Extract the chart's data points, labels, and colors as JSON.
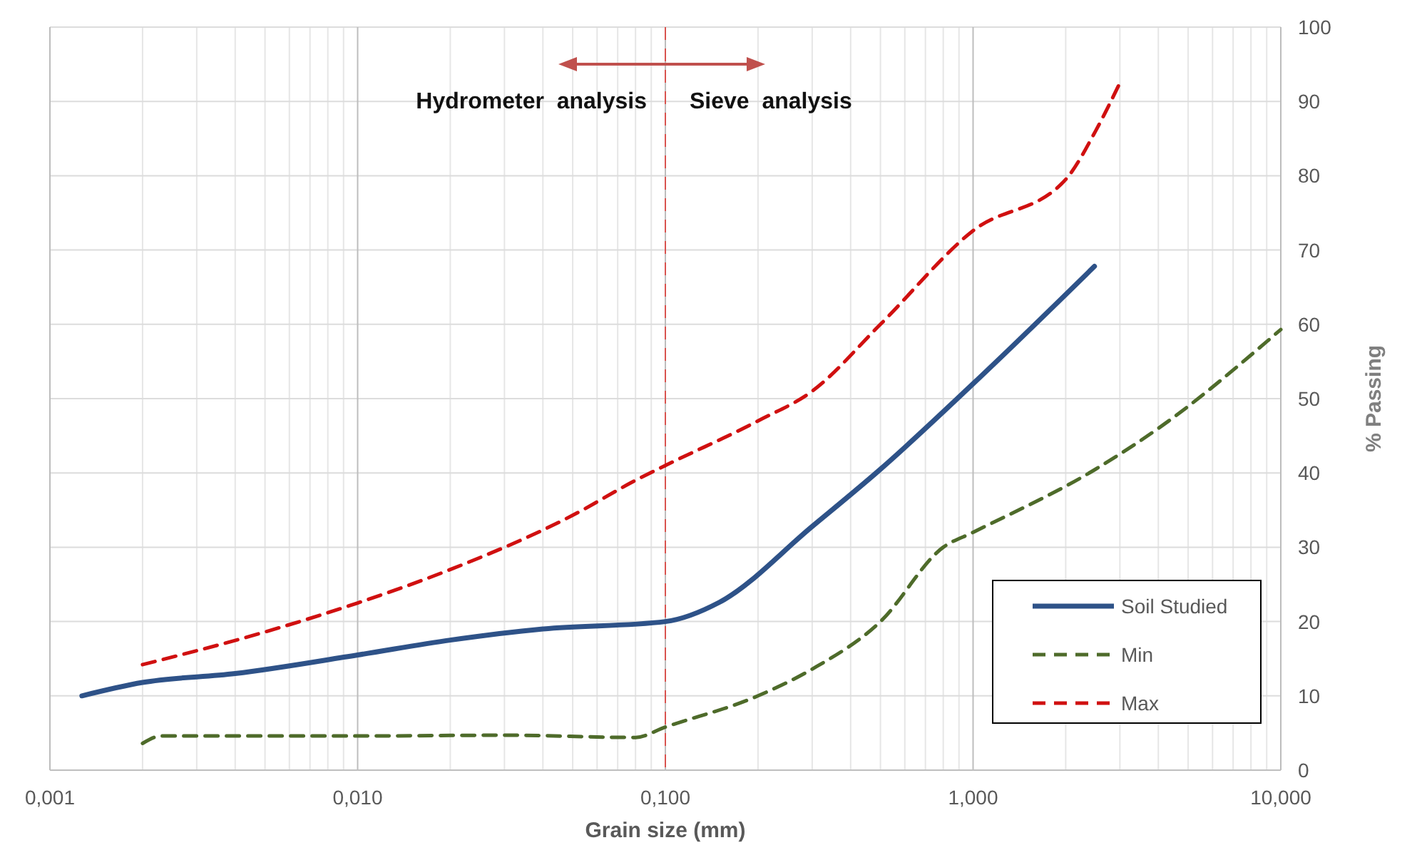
{
  "chart_data": {
    "type": "line",
    "xlabel": "Grain size (mm)",
    "ylabel": "% Passing",
    "log": "x",
    "grid": true,
    "legend": "bottom right",
    "xlim": [
      0.001,
      10
    ],
    "xticks": [
      {
        "value": 0.001,
        "label": "0,001"
      },
      {
        "value": 0.01,
        "label": "0,010"
      },
      {
        "value": 0.1,
        "label": "0,100"
      },
      {
        "value": 1,
        "label": "1,000"
      },
      {
        "value": 10,
        "label": "10,000"
      }
    ],
    "ylim": [
      0,
      100
    ],
    "yticks": [
      0,
      10,
      20,
      30,
      40,
      50,
      60,
      70,
      80,
      90,
      100
    ],
    "ref_lines": [
      {
        "axis": "x",
        "value": 0.1,
        "color": "#d9534f",
        "line_style": "dashed"
      }
    ],
    "annotations": [
      "Hydrometer  analysis",
      "Sieve  analysis"
    ],
    "series": [
      {
        "name": "Soil Studied",
        "color": "#2e5288",
        "line_style": "solid",
        "x": [
          0.00127,
          0.002,
          0.004,
          0.01,
          0.02,
          0.04,
          0.1,
          0.15,
          0.3,
          0.5,
          1,
          2.48
        ],
        "values": [
          10,
          11.8,
          13,
          15.5,
          17.5,
          19,
          20,
          22.6,
          32.8,
          40.5,
          52,
          67.8
        ]
      },
      {
        "name": "Min",
        "color": "#4e6b2a",
        "line_style": "dashed",
        "x": [
          0.002,
          0.0023,
          0.01,
          0.03,
          0.08,
          0.1,
          0.2,
          0.3,
          0.5,
          0.8,
          1,
          2.5,
          4,
          10
        ],
        "values": [
          3.6,
          4.6,
          4.6,
          4.7,
          4.4,
          5.8,
          10,
          13.6,
          20,
          30,
          32,
          40.5,
          46,
          59.3
        ]
      },
      {
        "name": "Max",
        "color": "#d01010",
        "line_style": "dashed",
        "x": [
          0.002,
          0.005,
          0.01,
          0.02,
          0.05,
          0.08,
          0.1,
          0.2,
          0.3,
          0.5,
          1,
          2,
          2.5,
          3
        ],
        "values": [
          14.2,
          18.6,
          22.5,
          27,
          34.3,
          39,
          41,
          47,
          51,
          60,
          72.6,
          79.5,
          86,
          92.5
        ]
      }
    ]
  }
}
